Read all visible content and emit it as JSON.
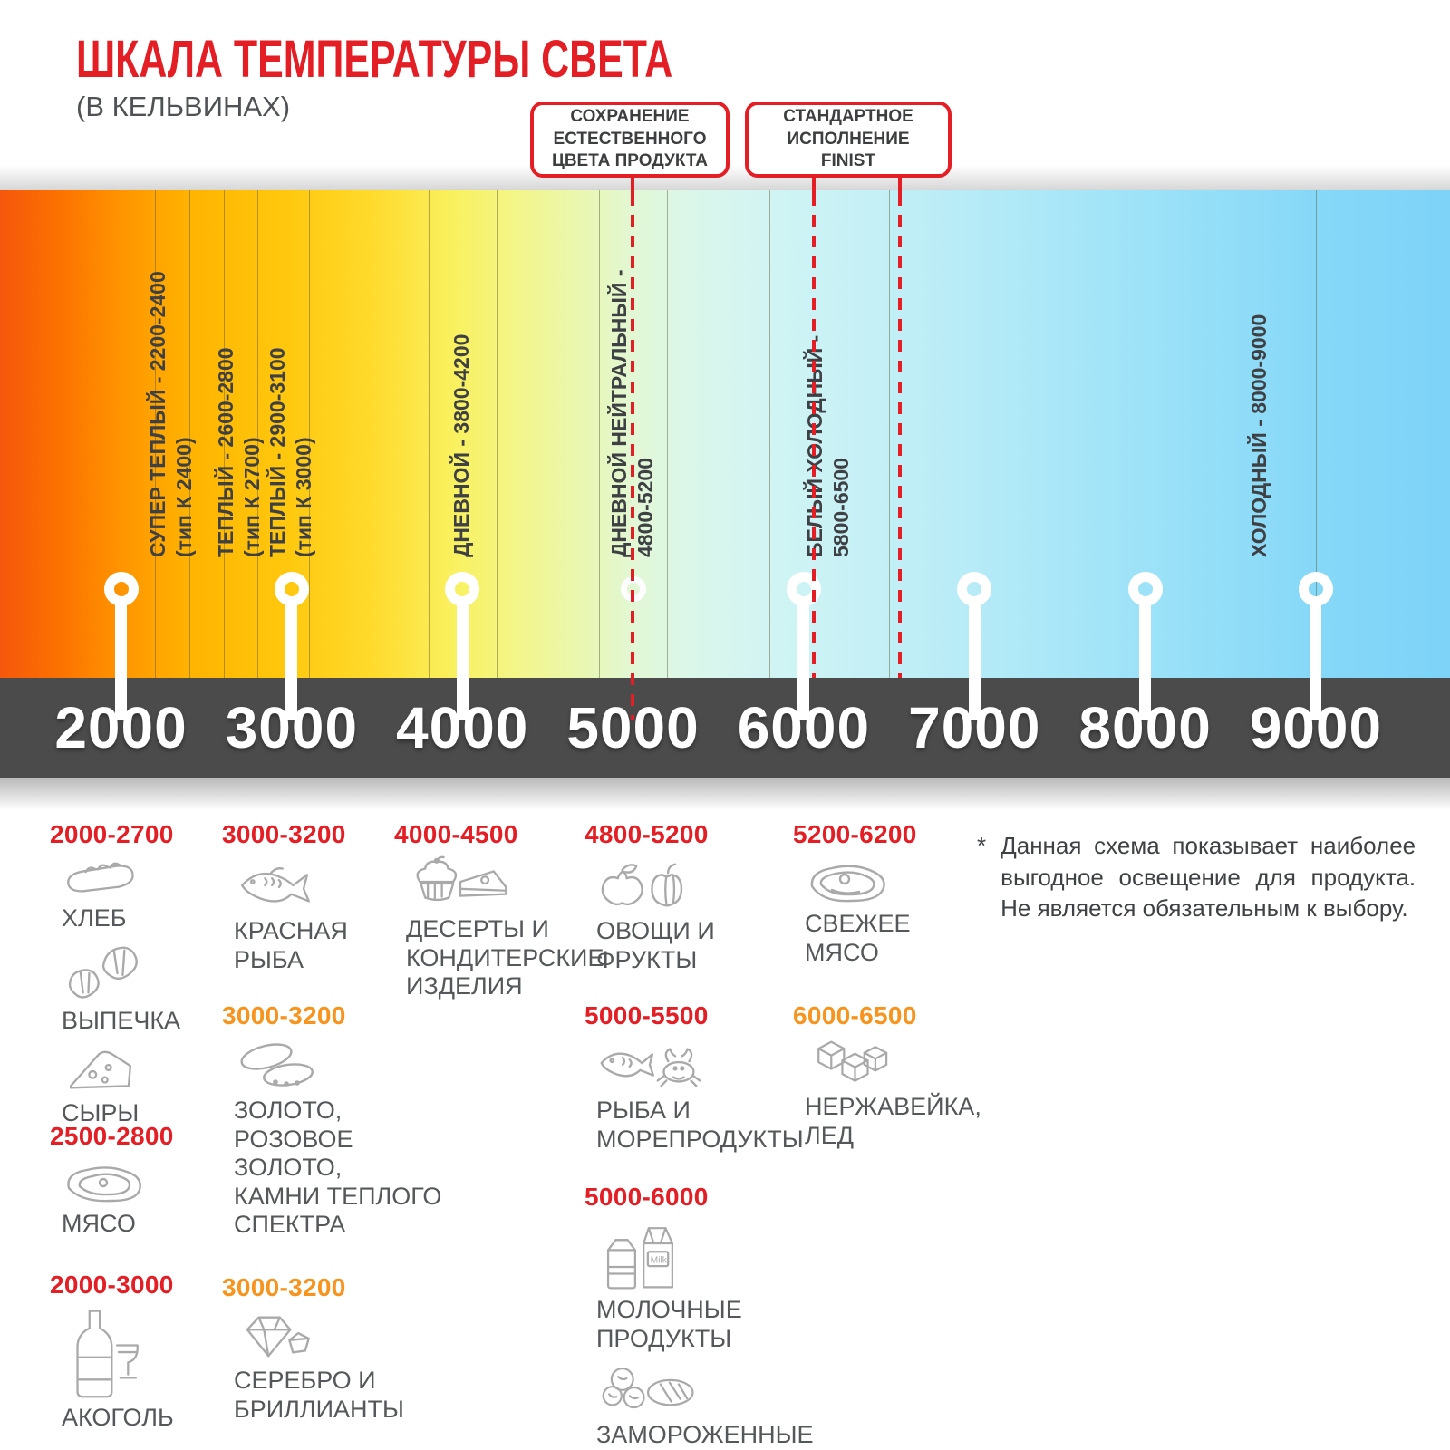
{
  "header": {
    "title": "ШКАЛА ТЕМПЕРАТУРЫ СВЕТА",
    "subtitle": "(В КЕЛЬВИНАХ)"
  },
  "callouts": [
    {
      "id": "natural-color",
      "text": "СОХРАНЕНИЕ\nЕСТЕСТВЕННОГО\nЦВЕТА ПРОДУКТА",
      "points_to_kelvin": [
        5000
      ]
    },
    {
      "id": "finist-standard",
      "text": "СТАНДАРТНОЕ\nИСПОЛНЕНИЕ\nFINIST",
      "points_to_kelvin": [
        6000,
        6500
      ]
    }
  ],
  "scale": {
    "unit": "K",
    "min": 2000,
    "max": 9000,
    "axis_ticks": [
      "2000",
      "3000",
      "4000",
      "5000",
      "6000",
      "7000",
      "8000",
      "9000"
    ],
    "zones": [
      {
        "label": "СУПЕР ТЕПЛЫЙ - 2200-2400",
        "sub": "(тип К 2400)",
        "from": 2200,
        "to": 2400
      },
      {
        "label": "ТЕПЛЫЙ - 2600-2800",
        "sub": "(тип К 2700)",
        "from": 2600,
        "to": 2800
      },
      {
        "label": "ТЕПЛЫЙ - 2900-3100",
        "sub": "(тип К 3000)",
        "from": 2900,
        "to": 3100
      },
      {
        "label": "ДНЕВНОЙ - 3800-4200",
        "sub": "",
        "from": 3800,
        "to": 4200
      },
      {
        "label": "ДНЕВНОЙ НЕЙТРАЛЬНЫЙ -",
        "sub": "4800-5200",
        "from": 4800,
        "to": 5200
      },
      {
        "label": "БЕЛЫЙ ХОЛОДНЫЙ -",
        "sub": "5800-6500",
        "from": 5800,
        "to": 6500
      },
      {
        "label": "ХОЛОДНЫЙ - 8000-9000",
        "sub": "",
        "from": 8000,
        "to": 9000
      }
    ],
    "gradient_stops": [
      [
        "0%",
        "#F5570C"
      ],
      [
        "4%",
        "#FB7100"
      ],
      [
        "8.3%",
        "#FF9400"
      ],
      [
        "13%",
        "#FFB300"
      ],
      [
        "19.5%",
        "#FFC70D"
      ],
      [
        "25.5%",
        "#FFDA2B"
      ],
      [
        "31.4%",
        "#F9F160"
      ],
      [
        "36%",
        "#F2F68D"
      ],
      [
        "40%",
        "#EAF7B0"
      ],
      [
        "43.6%",
        "#E2F7D4"
      ],
      [
        "47.5%",
        "#DBF7EA"
      ],
      [
        "51%",
        "#D5F5F0"
      ],
      [
        "55.4%",
        "#CDF3F5"
      ],
      [
        "61.3%",
        "#C3EFF6"
      ],
      [
        "67.2%",
        "#B6EBF7"
      ],
      [
        "79%",
        "#9DE2F8"
      ],
      [
        "90.8%",
        "#86D8F8"
      ],
      [
        "100%",
        "#7DD3F8"
      ]
    ]
  },
  "legend": {
    "milk_icon_text": "Milk",
    "columns": [
      {
        "groups": [
          {
            "range": "2000-2700",
            "range_color": "red",
            "items": [
              {
                "icon": "bread-icon",
                "label": "ХЛЕБ"
              },
              {
                "icon": "croissant-icon",
                "label": "ВЫПЕЧКА"
              },
              {
                "icon": "cheese-icon",
                "label": "СЫРЫ"
              }
            ]
          },
          {
            "range": "2500-2800",
            "range_color": "red",
            "items": [
              {
                "icon": "meat-icon",
                "label": "МЯСО"
              }
            ]
          },
          {
            "range": "2000-3000",
            "range_color": "red",
            "items": [
              {
                "icon": "alcohol-icon",
                "label": "АКОГОЛЬ"
              }
            ]
          }
        ]
      },
      {
        "groups": [
          {
            "range": "3000-3200",
            "range_color": "red",
            "items": [
              {
                "icon": "fish-icon",
                "label": "КРАСНАЯ\nРЫБА"
              }
            ]
          },
          {
            "range": "3000-3200",
            "range_color": "orange",
            "items": [
              {
                "icon": "rings-icon",
                "label": "ЗОЛОТО,\nРОЗОВОЕ ЗОЛОТО,\nКАМНИ ТЕПЛОГО\nСПЕКТРА"
              }
            ]
          },
          {
            "range": "3000-3200",
            "range_color": "orange",
            "items": [
              {
                "icon": "diamond-icon",
                "label": "СЕРЕБРО И\nБРИЛЛИАНТЫ"
              }
            ]
          }
        ]
      },
      {
        "groups": [
          {
            "range": "4000-4500",
            "range_color": "red",
            "items": [
              {
                "icon": "dessert-icon",
                "label": "ДЕСЕРТЫ И\nКОНДИТЕРСКИЕ\nИЗДЕЛИЯ"
              }
            ]
          }
        ]
      },
      {
        "groups": [
          {
            "range": "4800-5200",
            "range_color": "red",
            "items": [
              {
                "icon": "vegetables-icon",
                "label": "ОВОЩИ И\nФРУКТЫ"
              }
            ]
          },
          {
            "range": "5000-5500",
            "range_color": "red",
            "items": [
              {
                "icon": "seafood-icon",
                "label": "РЫБА И\nМОРЕПРОДУКТЫ"
              }
            ]
          },
          {
            "range": "5000-6000",
            "range_color": "red",
            "items": [
              {
                "icon": "dairy-icon",
                "label": "МОЛОЧНЫЕ ПРОДУКТЫ"
              },
              {
                "icon": "frozen-icon",
                "label": "ЗАМОРОЖЕННЫЕ\nПОЛУФАБРИКАТЫ"
              }
            ]
          }
        ]
      },
      {
        "groups": [
          {
            "range": "5200-6200",
            "range_color": "red",
            "items": [
              {
                "icon": "fresh-meat-icon",
                "label": "СВЕЖЕЕ\nМЯСО"
              }
            ]
          },
          {
            "range": "6000-6500",
            "range_color": "orange",
            "items": [
              {
                "icon": "ice-icon",
                "label": "НЕРЖАВЕЙКА,\nЛЕД"
              }
            ]
          }
        ]
      }
    ]
  },
  "footnote": {
    "marker": "*",
    "text": "Данная схема показывает наиболее выгодное освещение для продукта. Не является обязательным к выбору."
  },
  "colors": {
    "accent_red": "#E31E24",
    "accent_orange": "#F7941D",
    "band_dark": "#4B4B4B",
    "zone_text": "#3E4043",
    "legend_text": "#55585A",
    "icon_gray": "#A9A9A9"
  }
}
